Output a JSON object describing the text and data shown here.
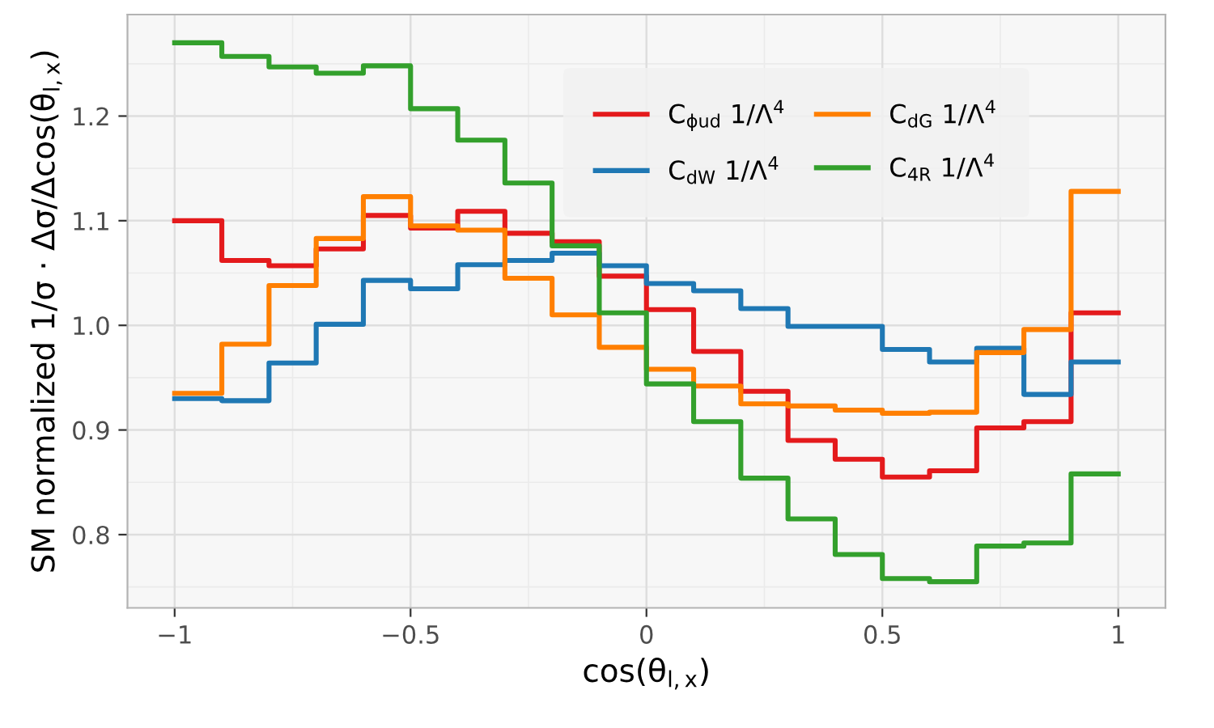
{
  "chart_data": {
    "type": "step",
    "xlabel": "cos(θ$_{l,x}$)",
    "ylabel": "SM normalized 1/σ · Δσ/Δcos(θ$_{l,x}$)",
    "x": [
      -1,
      -0.9,
      -0.8,
      -0.7,
      -0.6,
      -0.5,
      -0.4,
      -0.3,
      -0.2,
      -0.1,
      0,
      0.1,
      0.2,
      0.3,
      0.4,
      0.5,
      0.6,
      0.7,
      0.8,
      0.9,
      1
    ],
    "series": [
      {
        "name": "C$_{ϕud}$ 1/Λ$^{4}$",
        "color": "#e41a1c",
        "values": [
          1.1,
          1.062,
          1.057,
          1.073,
          1.105,
          1.093,
          1.109,
          1.088,
          1.08,
          1.047,
          1.015,
          0.975,
          0.937,
          0.89,
          0.872,
          0.855,
          0.861,
          0.902,
          0.908,
          1.012,
          1.012
        ]
      },
      {
        "name": "C$_{dW}$ 1/Λ$^{4}$",
        "color": "#1f78b4",
        "values": [
          0.93,
          0.928,
          0.964,
          1.001,
          1.043,
          1.035,
          1.058,
          1.062,
          1.069,
          1.057,
          1.04,
          1.033,
          1.016,
          0.999,
          0.999,
          0.977,
          0.965,
          0.978,
          0.934,
          0.965,
          0.965
        ]
      },
      {
        "name": "C$_{dG}$ 1/Λ$^{4}$",
        "color": "#ff7f00",
        "values": [
          0.935,
          0.982,
          1.038,
          1.083,
          1.123,
          1.095,
          1.091,
          1.045,
          1.01,
          0.979,
          0.958,
          0.942,
          0.925,
          0.923,
          0.919,
          0.916,
          0.917,
          0.974,
          0.996,
          1.128,
          1.128
        ]
      },
      {
        "name": "C$_{4R}$ 1/Λ$^{4}$",
        "color": "#33a02c",
        "values": [
          1.27,
          1.257,
          1.247,
          1.241,
          1.248,
          1.207,
          1.177,
          1.136,
          1.076,
          1.012,
          0.944,
          0.908,
          0.854,
          0.815,
          0.781,
          0.758,
          0.755,
          0.789,
          0.792,
          0.858,
          0.858
        ]
      }
    ],
    "xlim": [
      -1.1,
      1.1
    ],
    "ylim": [
      0.73,
      1.297
    ],
    "xticks": [
      {
        "value": -1,
        "label": "−1"
      },
      {
        "value": -0.5,
        "label": "−0.5"
      },
      0,
      0.5,
      1
    ],
    "yticks": [
      0.8,
      0.9,
      {
        "value": 1.0,
        "label": "1.0"
      },
      1.1,
      1.2
    ],
    "grid": true,
    "legend": "top right",
    "line_style": "solid"
  }
}
